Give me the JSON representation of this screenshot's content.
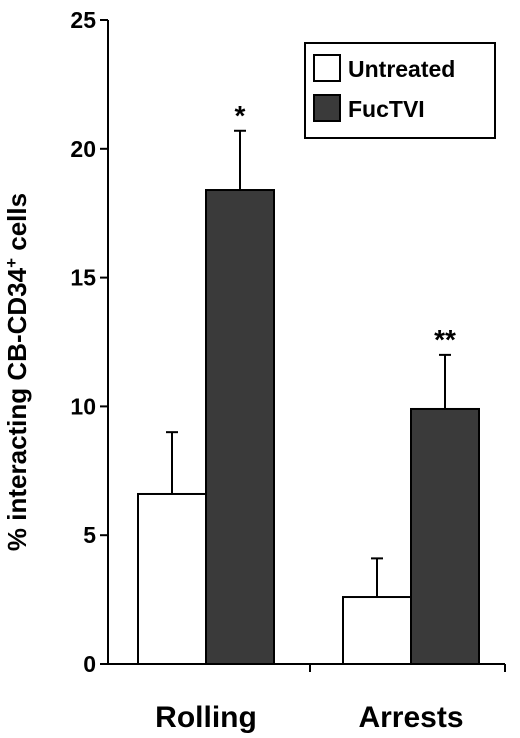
{
  "chart_data": {
    "type": "bar",
    "title": "",
    "xlabel": "",
    "ylabel": "% interacting CB-CD34",
    "ylabel_superscript": "+",
    "ylabel_suffix": " cells",
    "categories": [
      "Rolling",
      "Arrests"
    ],
    "series": [
      {
        "name": "Untreated",
        "values": [
          6.6,
          2.6
        ],
        "errors": [
          2.4,
          1.5
        ],
        "color": "#ffffff"
      },
      {
        "name": "FucTVI",
        "values": [
          18.4,
          9.9
        ],
        "errors": [
          2.3,
          2.1
        ],
        "color": "#3a3a3a"
      }
    ],
    "significance": [
      {
        "category": "Rolling",
        "series": "FucTVI",
        "label": "*"
      },
      {
        "category": "Arrests",
        "series": "FucTVI",
        "label": "**"
      }
    ],
    "ylim": [
      0,
      25
    ],
    "yticks": [
      0,
      5,
      10,
      15,
      20,
      25
    ],
    "legend_position": "top-right",
    "grid": false
  }
}
